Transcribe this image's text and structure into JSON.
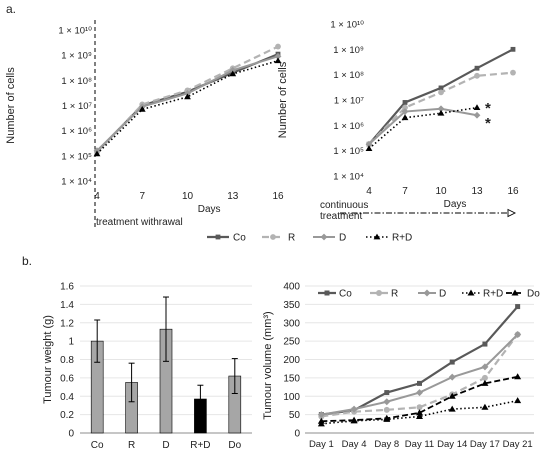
{
  "panel_labels": {
    "a": "a.",
    "b": "b."
  },
  "chart_data": [
    {
      "type": "line",
      "ylabel": "Number of cells",
      "xlabel": "Days",
      "yscale": "log",
      "ylim": [
        10000,
        10000000000
      ],
      "yticks": [
        "1 × 10⁴",
        "1 × 10⁵",
        "1 × 10⁶",
        "1 × 10⁷",
        "1 × 10⁸",
        "1 × 10⁹",
        "1 × 10¹⁰"
      ],
      "x": [
        4,
        7,
        10,
        13,
        16
      ],
      "annotation": "treatment withrawal",
      "series": [
        {
          "name": "Co",
          "values": [
            150000,
            10000000,
            35000000,
            200000000,
            1100000000
          ]
        },
        {
          "name": "R",
          "values": [
            140000,
            11000000,
            40000000,
            300000000,
            2200000000
          ]
        },
        {
          "name": "D",
          "values": [
            160000,
            9000000,
            30000000,
            250000000,
            900000000
          ]
        },
        {
          "name": "R+D",
          "values": [
            120000,
            7000000,
            22000000,
            180000000,
            600000000
          ]
        }
      ],
      "legend": [
        "Co",
        "R",
        "D",
        "R+D"
      ],
      "legend_position": "bottom"
    },
    {
      "type": "line",
      "ylabel": "Number of cells",
      "xlabel": "Days",
      "yscale": "log",
      "ylim": [
        10000,
        10000000000
      ],
      "yticks": [
        "1 × 10⁴",
        "1 × 10⁵",
        "1 × 10⁶",
        "1 × 10⁷",
        "1 × 10⁸",
        "1 × 10⁹",
        "1 × 10¹⁰"
      ],
      "x": [
        4,
        7,
        10,
        13,
        16
      ],
      "annotation": "continuous treatment",
      "significance_marks": [
        "*",
        "*"
      ],
      "series": [
        {
          "name": "Co",
          "values": [
            180000,
            8000000,
            30000000,
            180000000,
            1000000000
          ]
        },
        {
          "name": "R",
          "values": [
            180000,
            5000000,
            20000000,
            90000000,
            120000000
          ]
        },
        {
          "name": "D",
          "values": [
            180000,
            3500000,
            4500000,
            2500000,
            null
          ]
        },
        {
          "name": "R+D",
          "values": [
            120000,
            2000000,
            3000000,
            5000000,
            null
          ]
        }
      ]
    },
    {
      "type": "bar",
      "ylabel": "Tumour weight (g)",
      "ylim": [
        0,
        1.6
      ],
      "yticks": [
        "0",
        "0.2",
        "0.4",
        "0.6",
        "0.8",
        "1",
        "1.2",
        "1.4",
        "1.6"
      ],
      "categories": [
        "Co",
        "R",
        "D",
        "R+D",
        "Do"
      ],
      "values": [
        1.0,
        0.55,
        1.13,
        0.37,
        0.62
      ],
      "errors": [
        0.23,
        0.21,
        0.35,
        0.15,
        0.19
      ],
      "colors": [
        "#a6a6a6",
        "#a6a6a6",
        "#a6a6a6",
        "#000000",
        "#a6a6a6"
      ]
    },
    {
      "type": "line",
      "ylabel": "Tumour volume (mm³)",
      "ylim": [
        0,
        400
      ],
      "yticks": [
        "0",
        "50",
        "100",
        "150",
        "200",
        "250",
        "300",
        "350",
        "400"
      ],
      "categories": [
        "Day 1",
        "Day 4",
        "Day 8",
        "Day 11",
        "Day 14",
        "Day 17",
        "Day 21"
      ],
      "series": [
        {
          "name": "Co",
          "values": [
            50,
            62,
            110,
            135,
            193,
            242,
            344
          ]
        },
        {
          "name": "R",
          "values": [
            45,
            58,
            63,
            70,
            105,
            150,
            268
          ]
        },
        {
          "name": "D",
          "values": [
            50,
            65,
            85,
            110,
            152,
            180,
            268
          ]
        },
        {
          "name": "R+D",
          "values": [
            25,
            33,
            37,
            45,
            65,
            70,
            88
          ]
        },
        {
          "name": "Do",
          "values": [
            32,
            35,
            40,
            55,
            100,
            135,
            153
          ]
        }
      ],
      "legend": [
        "Co",
        "R",
        "D",
        "R+D",
        "Do"
      ],
      "legend_position": "top"
    }
  ]
}
